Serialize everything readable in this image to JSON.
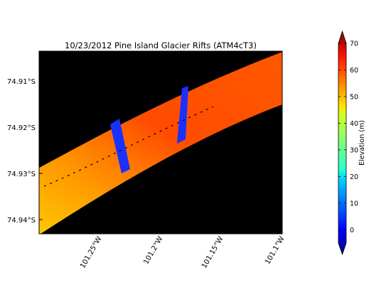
{
  "chart_data": {
    "type": "heatmap",
    "title": "10/23/2012 Pine Island Glacier Rifts (ATM4cT3)",
    "xlabel": "",
    "ylabel": "",
    "x_ticks": [
      "101.25°W",
      "101.2°W",
      "101.15°W",
      "101.1°W"
    ],
    "y_ticks": [
      "74.91°S",
      "74.92°S",
      "74.93°S",
      "74.94°S"
    ],
    "background_color": "#000000",
    "colorbar": {
      "label": "Elevation (m)",
      "ticks": [
        0,
        10,
        20,
        30,
        40,
        50,
        60,
        70
      ],
      "range": [
        -5,
        70
      ],
      "extend": "both",
      "colormap": "jet"
    },
    "series": [
      {
        "values": [
          {
            "along_track_fraction": 0.0,
            "elevation_m": 45
          },
          {
            "along_track_fraction": 0.1,
            "elevation_m": 52
          },
          {
            "along_track_fraction": 0.2,
            "elevation_m": 60
          },
          {
            "along_track_fraction": 0.34,
            "elevation_m": 62
          },
          {
            "along_track_fraction": 0.36,
            "elevation_m": 5
          },
          {
            "along_track_fraction": 0.38,
            "elevation_m": 60
          },
          {
            "along_track_fraction": 0.5,
            "elevation_m": 58
          },
          {
            "along_track_fraction": 0.59,
            "elevation_m": 56
          },
          {
            "along_track_fraction": 0.61,
            "elevation_m": 5
          },
          {
            "along_track_fraction": 0.63,
            "elevation_m": 57
          },
          {
            "along_track_fraction": 0.8,
            "elevation_m": 55
          },
          {
            "along_track_fraction": 1.0,
            "elevation_m": 50
          }
        ]
      }
    ],
    "grid": false
  }
}
